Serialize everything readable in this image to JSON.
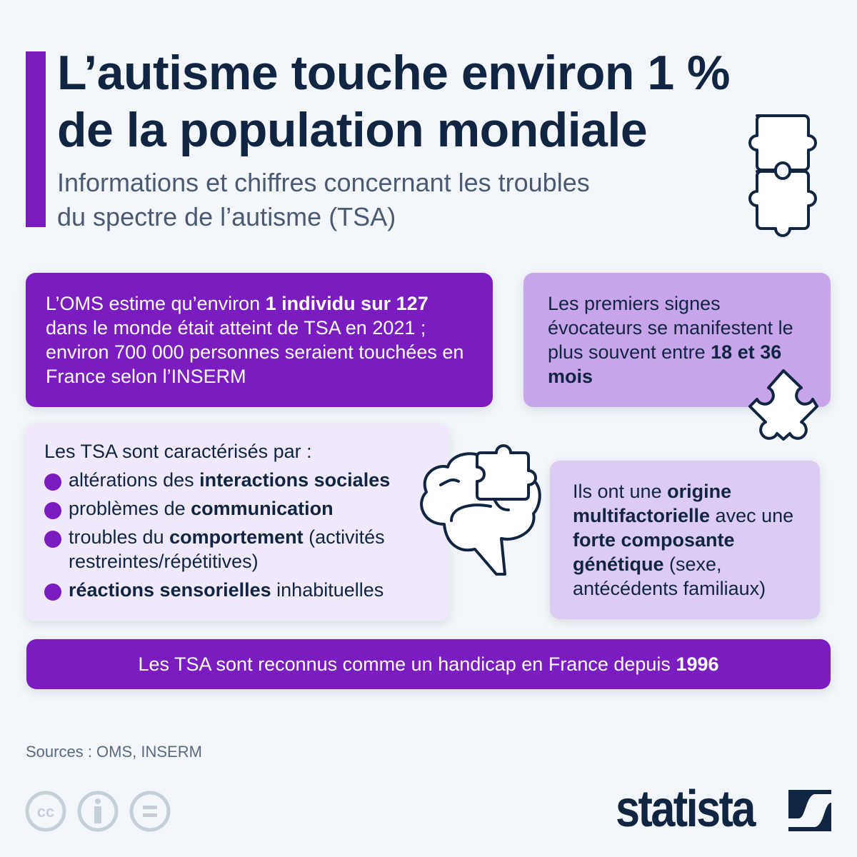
{
  "title": {
    "line1": "L’autisme touche environ 1 %",
    "line2": "de la population mondiale"
  },
  "subtitle": {
    "line1": "Informations et chiffres concernant les troubles",
    "line2": "du spectre de l’autisme (TSA)"
  },
  "box_oms": {
    "t1": "L’OMS estime qu’environ ",
    "b1": "1 individu sur 127",
    "t2": " dans le monde était atteint de TSA en 2021 ; environ 700 000 personnes seraient touchées en France selon l’INSERM"
  },
  "box_signs": {
    "t1": "Les premiers signes évocateurs se manifestent le plus souvent entre ",
    "b1": "18 et 36 mois"
  },
  "box_traits": {
    "intro": "Les TSA sont caractérisés par :",
    "items": [
      {
        "t1": "altérations des ",
        "b1": "interactions sociales",
        "t2": ""
      },
      {
        "t1": "problèmes de ",
        "b1": "communication",
        "t2": ""
      },
      {
        "t1": "troubles du ",
        "b1": "comportement",
        "t2": " (activités restreintes/répétitives)"
      },
      {
        "t1": "",
        "b1": "réactions sensorielles",
        "t2": " inhabituelles"
      }
    ]
  },
  "box_origin": {
    "t1": "Ils ont une ",
    "b1": "origine multifactorielle",
    "t2": " avec une ",
    "b2": "forte composante génétique",
    "t3": " (sexe, antécédents familiaux)"
  },
  "banner": {
    "t1": "Les TSA sont reconnus comme un handicap en France depuis ",
    "b1": "1996"
  },
  "sources": "Sources : OMS, INSERM",
  "license_icons": [
    "cc-icon",
    "attribution-icon",
    "no-derivatives-icon"
  ],
  "logo": "statista",
  "colors": {
    "accent": "#7a1cbf",
    "title": "#0f2541",
    "background": "#f3f7fb",
    "light_purple": "#c8a5ea",
    "pale_purple": "#efe9fb",
    "lavender": "#dccbf2"
  }
}
